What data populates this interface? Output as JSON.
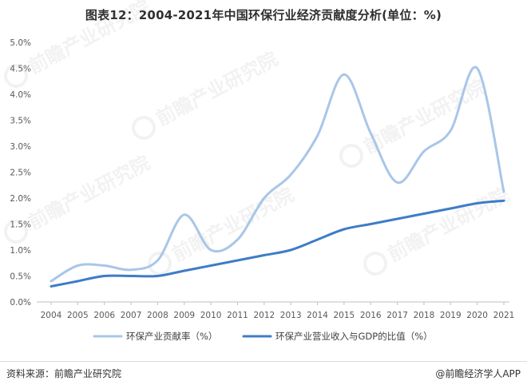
{
  "title": "图表12：2004-2021年中国环保行业经济贡献度分析(单位：%)",
  "footer": {
    "source": "资料来源：前瞻产业研究院",
    "brand": "@前瞻经济学人APP"
  },
  "watermark": {
    "text": "前瞻产业研究院"
  },
  "colors": {
    "series1": "#a9c6e8",
    "series2": "#3e7cc8",
    "axis": "#bfbfbf",
    "text": "#595959"
  },
  "chart_data": {
    "type": "line",
    "title": "图表12：2004-2021年中国环保行业经济贡献度分析(单位：%)",
    "x": [
      "2004",
      "2005",
      "2006",
      "2007",
      "2008",
      "2009",
      "2010",
      "2011",
      "2012",
      "2013",
      "2014",
      "2015",
      "2016",
      "2017",
      "2018",
      "2019",
      "2020",
      "2021"
    ],
    "ylim": [
      0,
      5.0
    ],
    "yticks": [
      "0.0%",
      "0.5%",
      "1.0%",
      "1.5%",
      "2.0%",
      "2.5%",
      "3.0%",
      "3.5%",
      "4.0%",
      "4.5%",
      "5.0%"
    ],
    "ytick_values": [
      0,
      0.5,
      1.0,
      1.5,
      2.0,
      2.5,
      3.0,
      3.5,
      4.0,
      4.5,
      5.0
    ],
    "grid": false,
    "legend_position": "bottom",
    "series": [
      {
        "name": "环保产业贡献率（%）",
        "values": [
          0.4,
          0.7,
          0.7,
          0.62,
          0.8,
          1.68,
          1.0,
          1.2,
          2.0,
          2.45,
          3.2,
          4.38,
          3.25,
          2.3,
          2.9,
          3.3,
          4.5,
          2.12
        ]
      },
      {
        "name": "环保产业营业收入与GDP的比值（%）",
        "values": [
          0.3,
          0.4,
          0.5,
          0.5,
          0.5,
          0.6,
          0.7,
          0.8,
          0.9,
          1.0,
          1.2,
          1.4,
          1.5,
          1.6,
          1.7,
          1.8,
          1.9,
          1.95
        ]
      }
    ]
  }
}
